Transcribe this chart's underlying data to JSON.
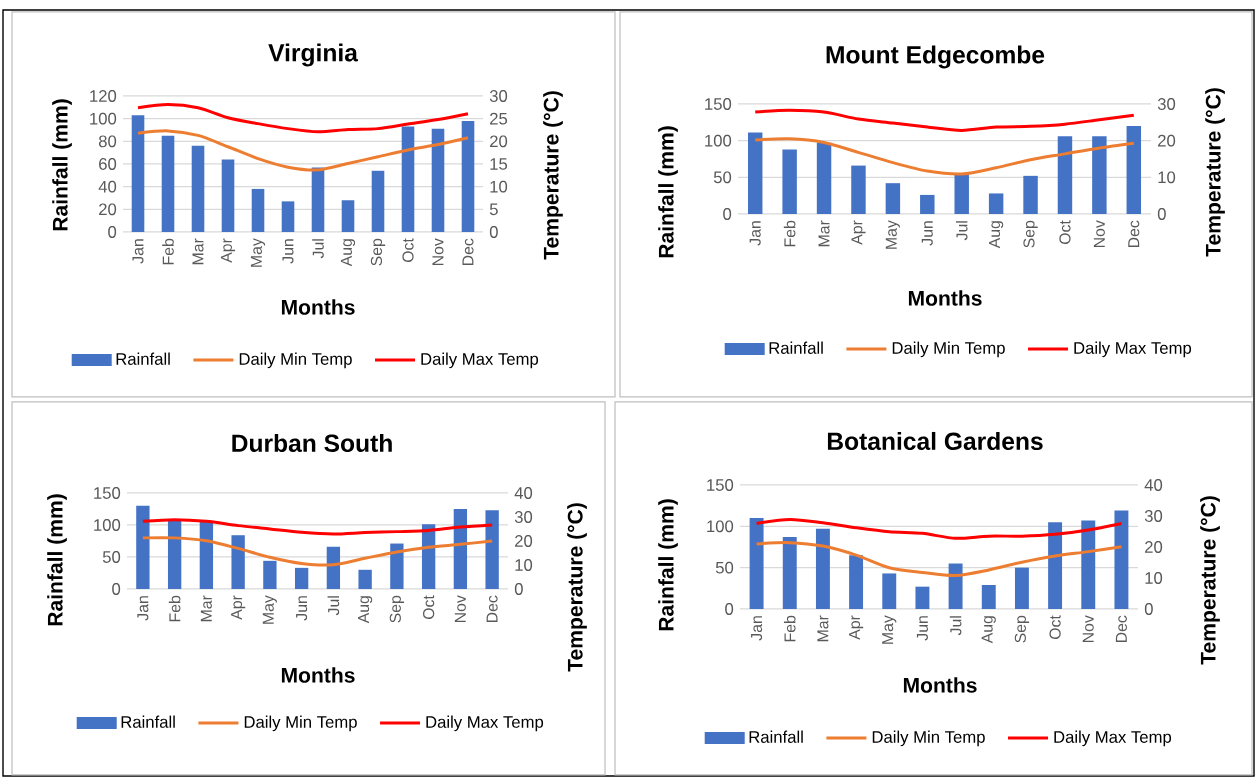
{
  "chart_data": [
    {
      "type": "bar",
      "title": "Virginia",
      "xlabel": "Months",
      "ylabel": "Rainfall (mm)",
      "y2label": "Temperature (°C)",
      "categories": [
        "Jan",
        "Feb",
        "Mar",
        "Apr",
        "May",
        "Jun",
        "Jul",
        "Aug",
        "Sep",
        "Oct",
        "Nov",
        "Dec"
      ],
      "series": [
        {
          "name": "Rainfall",
          "color": "#4472c4",
          "values": [
            103,
            85,
            76,
            64,
            38,
            27,
            57,
            28,
            54,
            93,
            91,
            98
          ]
        },
        {
          "name": "Daily Min Temp",
          "type": "line",
          "axis": "y2",
          "color": "#ed7d31",
          "values": [
            21.8,
            22.3,
            21.3,
            18.8,
            16.2,
            14.3,
            13.7,
            15.1,
            16.6,
            18.1,
            19.3,
            20.8
          ]
        },
        {
          "name": "Daily Max Temp",
          "type": "line",
          "axis": "y2",
          "color": "#ff0000",
          "values": [
            27.4,
            28.1,
            27.4,
            25.2,
            23.9,
            22.8,
            22.1,
            22.6,
            22.8,
            23.8,
            24.8,
            26.1
          ]
        }
      ],
      "ylim": [
        0,
        120
      ],
      "yticks": [
        0,
        20,
        40,
        60,
        80,
        100,
        120
      ],
      "y2lim": [
        0,
        30
      ],
      "y2ticks": [
        0,
        5,
        10,
        15,
        20,
        25,
        30
      ],
      "grid": "y",
      "legend": "bottom"
    },
    {
      "type": "bar",
      "title": "Mount Edgecombe",
      "xlabel": "Months",
      "ylabel": "Rainfall (mm)",
      "y2label": "Temperature (°C)",
      "categories": [
        "Jan",
        "Feb",
        "Mar",
        "Apr",
        "May",
        "Jun",
        "Jul",
        "Aug",
        "Sep",
        "Oct",
        "Nov",
        "Dec"
      ],
      "series": [
        {
          "name": "Rainfall",
          "color": "#4472c4",
          "values": [
            111,
            88,
            97,
            66,
            42,
            26,
            55,
            28,
            52,
            106,
            106,
            120
          ]
        },
        {
          "name": "Daily Min Temp",
          "type": "line",
          "axis": "y2",
          "color": "#ed7d31",
          "values": [
            20.2,
            20.5,
            19.5,
            16.8,
            14.0,
            11.7,
            10.9,
            12.6,
            14.8,
            16.4,
            18.0,
            19.3
          ]
        },
        {
          "name": "Daily Max Temp",
          "type": "line",
          "axis": "y2",
          "color": "#ff0000",
          "values": [
            27.8,
            28.3,
            27.8,
            25.9,
            24.8,
            23.7,
            22.8,
            23.7,
            23.9,
            24.5,
            25.7,
            26.9
          ]
        }
      ],
      "ylim": [
        0,
        150
      ],
      "yticks": [
        0,
        50,
        100,
        150
      ],
      "y2lim": [
        0,
        30
      ],
      "y2ticks": [
        0,
        10,
        20,
        30
      ],
      "grid": "y",
      "legend": "bottom"
    },
    {
      "type": "bar",
      "title": "Durban South",
      "xlabel": "Months",
      "ylabel": "Rainfall (mm)",
      "y2label": "Temperature (°C)",
      "categories": [
        "Jan",
        "Feb",
        "Mar",
        "Apr",
        "May",
        "Jun",
        "Jul",
        "Aug",
        "Sep",
        "Oct",
        "Nov",
        "Dec"
      ],
      "series": [
        {
          "name": "Rainfall",
          "color": "#4472c4",
          "values": [
            130,
            108,
            105,
            84,
            44,
            33,
            66,
            30,
            71,
            101,
            125,
            123
          ]
        },
        {
          "name": "Daily Min Temp",
          "type": "line",
          "axis": "y2",
          "color": "#ed7d31",
          "values": [
            21.3,
            21.3,
            20.1,
            16.9,
            13.2,
            10.6,
            10.1,
            12.8,
            15.4,
            17.4,
            18.6,
            20.0
          ]
        },
        {
          "name": "Daily Max Temp",
          "type": "line",
          "axis": "y2",
          "color": "#ff0000",
          "values": [
            28.2,
            28.9,
            28.2,
            26.4,
            25.0,
            23.6,
            22.9,
            23.5,
            23.9,
            24.4,
            25.8,
            26.7
          ]
        }
      ],
      "ylim": [
        0,
        150
      ],
      "yticks": [
        0,
        50,
        100,
        150
      ],
      "y2lim": [
        0,
        40
      ],
      "y2ticks": [
        0,
        10,
        20,
        30,
        40
      ],
      "grid": "y",
      "legend": "bottom"
    },
    {
      "type": "bar",
      "title": "Botanical Gardens",
      "xlabel": "Months",
      "ylabel": "Rainfall (mm)",
      "y2label": "Temperature (°C)",
      "categories": [
        "Jan",
        "Feb",
        "Mar",
        "Apr",
        "May",
        "Jun",
        "Jul",
        "Aug",
        "Sep",
        "Oct",
        "Nov",
        "Dec"
      ],
      "series": [
        {
          "name": "Rainfall",
          "color": "#4472c4",
          "values": [
            110,
            87,
            97,
            65,
            43,
            27,
            55,
            29,
            50,
            105,
            107,
            119
          ]
        },
        {
          "name": "Daily Min Temp",
          "type": "line",
          "axis": "y2",
          "color": "#ed7d31",
          "values": [
            21.0,
            21.4,
            20.3,
            17.4,
            13.3,
            11.8,
            10.8,
            12.6,
            15.1,
            17.1,
            18.5,
            20.1
          ]
        },
        {
          "name": "Daily Max Temp",
          "type": "line",
          "axis": "y2",
          "color": "#ff0000",
          "values": [
            27.6,
            28.9,
            27.8,
            26.2,
            24.9,
            24.4,
            22.8,
            23.5,
            23.5,
            24.1,
            25.5,
            27.6
          ]
        }
      ],
      "ylim": [
        0,
        150
      ],
      "yticks": [
        0,
        50,
        100,
        150
      ],
      "y2lim": [
        0,
        40
      ],
      "y2ticks": [
        0,
        10,
        20,
        30,
        40
      ],
      "grid": "y",
      "legend": "bottom"
    }
  ]
}
